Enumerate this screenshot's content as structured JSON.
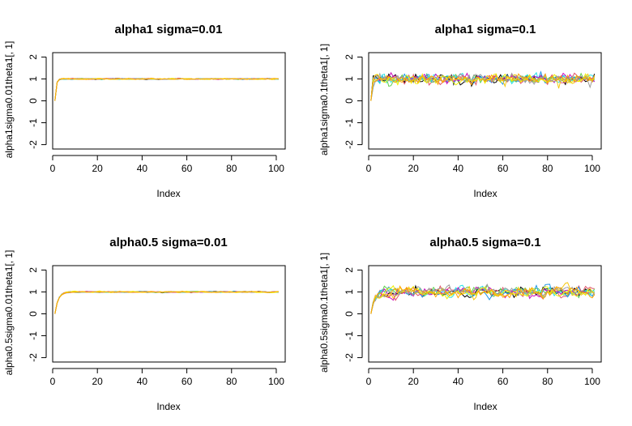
{
  "chart_data": [
    {
      "type": "line",
      "title": "alpha1 sigma=0.01",
      "xlabel": "Index",
      "ylabel": "alpha1sigma0.01theta1[, 1]",
      "xlim": [
        0,
        104
      ],
      "ylim": [
        -2.2,
        2.2
      ],
      "xticks": [
        0,
        20,
        40,
        60,
        80,
        100
      ],
      "yticks": [
        -2,
        -1,
        0,
        1,
        2
      ],
      "n_points": 101,
      "start_value": 0,
      "target": 1,
      "converge_rate": 0.85,
      "noise": 0.012,
      "series_colors": [
        "#000000",
        "#df536b",
        "#61d04f",
        "#2297e6",
        "#28e2e5",
        "#cd0bbc",
        "#f5c710",
        "#9e9e9e",
        "#eeee00",
        "#ffa500"
      ]
    },
    {
      "type": "line",
      "title": "alpha1 sigma=0.1",
      "xlabel": "Index",
      "ylabel": "alpha1sigma0.1theta1[, 1]",
      "xlim": [
        0,
        104
      ],
      "ylim": [
        -2.2,
        2.2
      ],
      "xticks": [
        0,
        20,
        40,
        60,
        80,
        100
      ],
      "yticks": [
        -2,
        -1,
        0,
        1,
        2
      ],
      "n_points": 101,
      "start_value": 0,
      "target": 1,
      "converge_rate": 0.85,
      "noise": 0.11,
      "series_colors": [
        "#000000",
        "#df536b",
        "#61d04f",
        "#2297e6",
        "#28e2e5",
        "#cd0bbc",
        "#f5c710",
        "#9e9e9e",
        "#eeee00",
        "#ffa500"
      ]
    },
    {
      "type": "line",
      "title": "alpha0.5 sigma=0.01",
      "xlabel": "Index",
      "ylabel": "alpha0.5sigma0.01theta1[, 1]",
      "xlim": [
        0,
        104
      ],
      "ylim": [
        -2.2,
        2.2
      ],
      "xticks": [
        0,
        20,
        40,
        60,
        80,
        100
      ],
      "yticks": [
        -2,
        -1,
        0,
        1,
        2
      ],
      "n_points": 101,
      "start_value": 0,
      "target": 1,
      "converge_rate": 0.5,
      "noise": 0.012,
      "series_colors": [
        "#000000",
        "#df536b",
        "#61d04f",
        "#2297e6",
        "#28e2e5",
        "#cd0bbc",
        "#f5c710",
        "#9e9e9e",
        "#eeee00",
        "#ffa500"
      ]
    },
    {
      "type": "line",
      "title": "alpha0.5 sigma=0.1",
      "xlabel": "Index",
      "ylabel": "alpha0.5sigma0.1theta1[, 1]",
      "xlim": [
        0,
        104
      ],
      "ylim": [
        -2.2,
        2.2
      ],
      "xticks": [
        0,
        20,
        40,
        60,
        80,
        100
      ],
      "yticks": [
        -2,
        -1,
        0,
        1,
        2
      ],
      "n_points": 101,
      "start_value": 0,
      "target": 1,
      "converge_rate": 0.5,
      "noise": 0.11,
      "series_colors": [
        "#000000",
        "#df536b",
        "#61d04f",
        "#2297e6",
        "#28e2e5",
        "#cd0bbc",
        "#f5c710",
        "#9e9e9e",
        "#eeee00",
        "#ffa500"
      ]
    }
  ]
}
